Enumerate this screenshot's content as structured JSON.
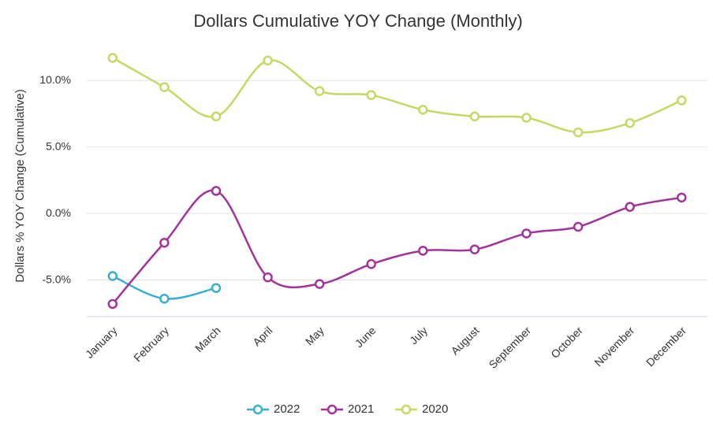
{
  "chart_data": {
    "type": "line",
    "title": "Dollars Cumulative YOY Change (Monthly)",
    "y_label": "Dollars % YOY Change (Cumulative)",
    "categories": [
      "January",
      "February",
      "March",
      "April",
      "May",
      "June",
      "July",
      "August",
      "September",
      "October",
      "November",
      "December"
    ],
    "series": [
      {
        "name": "2022",
        "color": "#3aaed0",
        "values": [
          -4.7,
          -6.4,
          -5.6,
          null,
          null,
          null,
          null,
          null,
          null,
          null,
          null,
          null
        ]
      },
      {
        "name": "2021",
        "color": "#a2329c",
        "values": [
          -6.8,
          -2.2,
          1.7,
          -4.8,
          -5.3,
          -3.8,
          -2.8,
          -2.7,
          -1.5,
          -1.0,
          0.5,
          1.2
        ]
      },
      {
        "name": "2020",
        "color": "#c2d964",
        "values": [
          11.7,
          9.5,
          7.3,
          11.5,
          9.2,
          8.9,
          7.8,
          7.3,
          7.2,
          6.1,
          6.8,
          8.5
        ]
      }
    ],
    "ylim": [
      -7.75,
      12.5
    ],
    "yticks": [
      {
        "value": -5,
        "label": "-5.0%"
      },
      {
        "value": 0,
        "label": "0.0%"
      },
      {
        "value": 5,
        "label": "5.0%"
      },
      {
        "value": 10,
        "label": "10.0%"
      }
    ],
    "grid": true,
    "legend": "bottom"
  }
}
